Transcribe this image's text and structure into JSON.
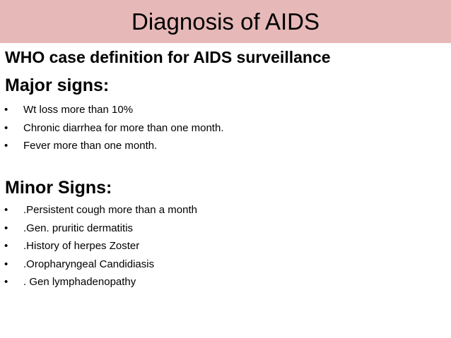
{
  "title": "Diagnosis of AIDS",
  "subtitle": "WHO case definition for AIDS surveillance",
  "major": {
    "heading": "Major signs:",
    "items": [
      "Wt loss more than 10%",
      "Chronic diarrhea for more than one month.",
      "Fever more than one month."
    ]
  },
  "minor": {
    "heading": "Minor Signs:",
    "items": [
      ".Persistent cough more than a month",
      ".Gen. pruritic dermatitis",
      ".History of herpes Zoster",
      ".Oropharyngeal Candidiasis",
      ". Gen lymphadenopathy"
    ]
  },
  "bullet": "•"
}
